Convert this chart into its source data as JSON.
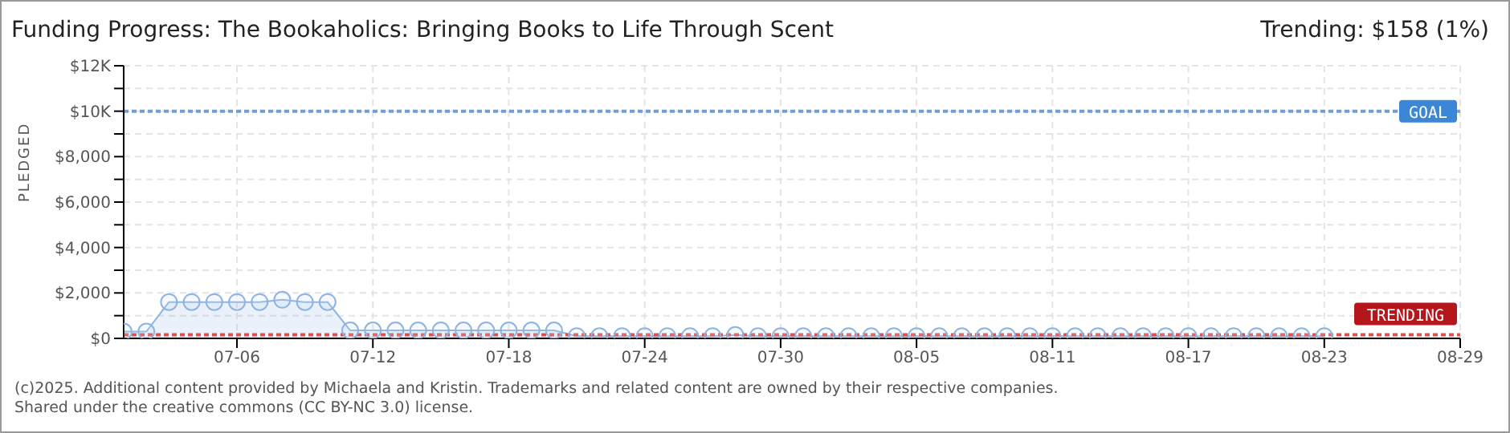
{
  "chart_data": {
    "type": "area",
    "title": "Funding Progress: The Bookaholics: Bringing Books to Life Through Scent",
    "subtitle": "Trending: $158 (1%)",
    "ylabel": "PLEDGED",
    "x": [
      "--07-01",
      "--07-02",
      "--07-03",
      "--07-04",
      "--07-05",
      "--07-06",
      "--07-07",
      "--07-08",
      "--07-09",
      "--07-10",
      "--07-11",
      "--07-12",
      "--07-13",
      "--07-14",
      "--07-15",
      "--07-16",
      "--07-17",
      "--07-18",
      "--07-19",
      "--07-20",
      "--07-21",
      "--07-22",
      "--07-23",
      "--07-24",
      "--07-25",
      "--07-26",
      "--07-27",
      "--07-28",
      "--07-29",
      "--07-30",
      "--07-31",
      "--08-01",
      "--08-02",
      "--08-03",
      "--08-04",
      "--08-05",
      "--08-06",
      "--08-07",
      "--08-08",
      "--08-09",
      "--08-10",
      "--08-11",
      "--08-12",
      "--08-13",
      "--08-14",
      "--08-15",
      "--08-16",
      "--08-17",
      "--08-18",
      "--08-19",
      "--08-20",
      "--08-21",
      "--08-22",
      "--08-23"
    ],
    "series": [
      {
        "color": "#8db4e2",
        "values": [
          300,
          300,
          1600,
          1600,
          1600,
          1600,
          1600,
          1700,
          1600,
          1600,
          350,
          350,
          350,
          350,
          350,
          350,
          350,
          350,
          350,
          350,
          100,
          100,
          100,
          100,
          100,
          100,
          100,
          150,
          100,
          100,
          100,
          100,
          100,
          100,
          100,
          100,
          100,
          100,
          100,
          100,
          100,
          100,
          100,
          100,
          100,
          100,
          100,
          100,
          100,
          100,
          100,
          100,
          100,
          100
        ]
      }
    ],
    "marker": "circle",
    "grid": true,
    "legend": false,
    "xlim": [
      "--07-01",
      "--08-29"
    ],
    "xticks": [
      {
        "value": "--07-06",
        "label": "07-06"
      },
      {
        "value": "--07-12",
        "label": "07-12"
      },
      {
        "value": "--07-18",
        "label": "07-18"
      },
      {
        "value": "--07-24",
        "label": "07-24"
      },
      {
        "value": "--07-30",
        "label": "07-30"
      },
      {
        "value": "--08-05",
        "label": "08-05"
      },
      {
        "value": "--08-11",
        "label": "08-11"
      },
      {
        "value": "--08-17",
        "label": "08-17"
      },
      {
        "value": "--08-23",
        "label": "08-23"
      },
      {
        "value": "--08-29",
        "label": "08-29"
      }
    ],
    "ylim": [
      0,
      12000
    ],
    "yticks": [
      {
        "value": 0,
        "label": "$0"
      },
      {
        "value": 1000,
        "label": null
      },
      {
        "value": 2000,
        "label": "$2,000"
      },
      {
        "value": 3000,
        "label": null
      },
      {
        "value": 4000,
        "label": "$4,000"
      },
      {
        "value": 5000,
        "label": null
      },
      {
        "value": 6000,
        "label": "$6,000"
      },
      {
        "value": 7000,
        "label": null
      },
      {
        "value": 8000,
        "label": "$8,000"
      },
      {
        "value": 9000,
        "label": null
      },
      {
        "value": 10000,
        "label": "$10K"
      },
      {
        "value": 11000,
        "label": null
      },
      {
        "value": 12000,
        "label": "$12K"
      }
    ],
    "ref_lines": [
      {
        "axis": "y",
        "value": 10000,
        "label": "GOAL",
        "color": "#6f9fd8",
        "line_style": "dotted"
      },
      {
        "axis": "y",
        "value": 158,
        "label": "TRENDING",
        "color": "#d9534f",
        "line_style": "dotted"
      }
    ],
    "annotations": [
      "(c)2025. Additional content provided by Michaela and Kristin. Trademarks and related content are owned by their respective companies.",
      "Shared under the creative commons (CC BY-NC 3.0) license."
    ]
  }
}
